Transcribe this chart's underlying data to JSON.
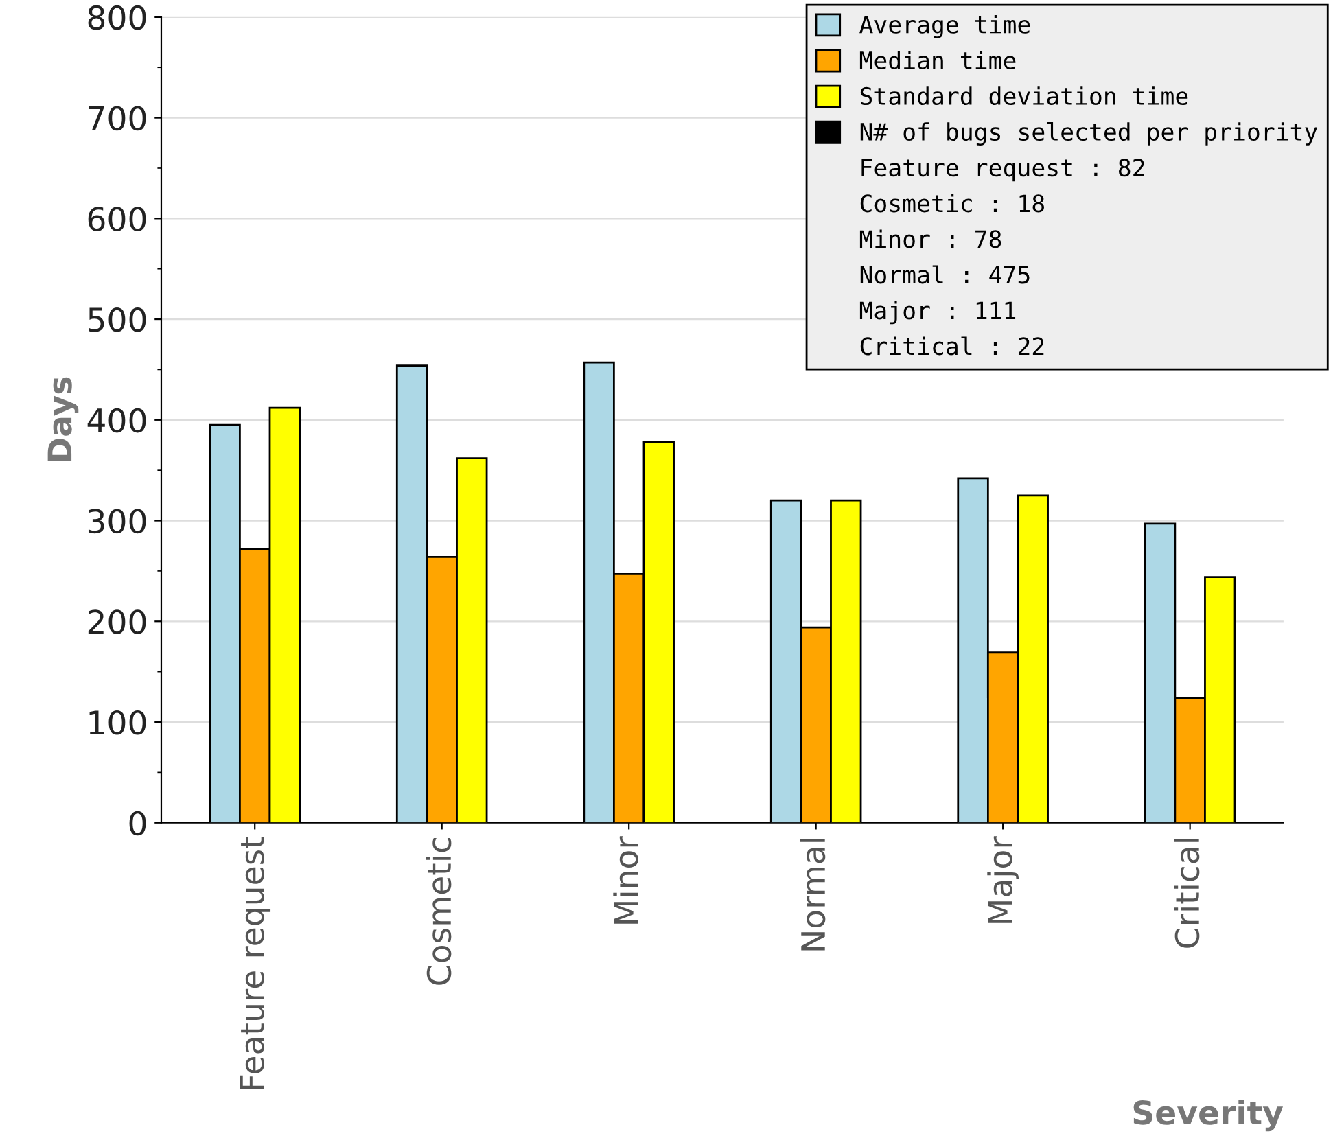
{
  "chart_data": {
    "type": "bar",
    "xlabel": "Severity",
    "ylabel": "Days",
    "categories": [
      "Feature request",
      "Cosmetic",
      "Minor",
      "Normal",
      "Major",
      "Critical"
    ],
    "series": [
      {
        "name": "Average time",
        "color": "#add8e6",
        "values": [
          395,
          454,
          457,
          320,
          342,
          297
        ]
      },
      {
        "name": "Median time",
        "color": "#ffa500",
        "values": [
          272,
          264,
          247,
          194,
          169,
          124
        ]
      },
      {
        "name": "Standard deviation time",
        "color": "#ffff00",
        "values": [
          412,
          362,
          378,
          320,
          325,
          244
        ]
      },
      {
        "name": "N# of bugs selected per priority",
        "color": "#000000",
        "values": [
          null,
          null,
          null,
          null,
          null,
          null
        ]
      }
    ],
    "annotations": [
      "Feature request : 82",
      "Cosmetic : 18",
      "Minor : 78",
      "Normal : 475",
      "Major : 111",
      "Critical : 22"
    ],
    "ylim": [
      0,
      800
    ],
    "yticks": [
      0,
      100,
      200,
      300,
      400,
      500,
      600,
      700,
      800
    ],
    "grid": "y",
    "legend": "top right"
  }
}
